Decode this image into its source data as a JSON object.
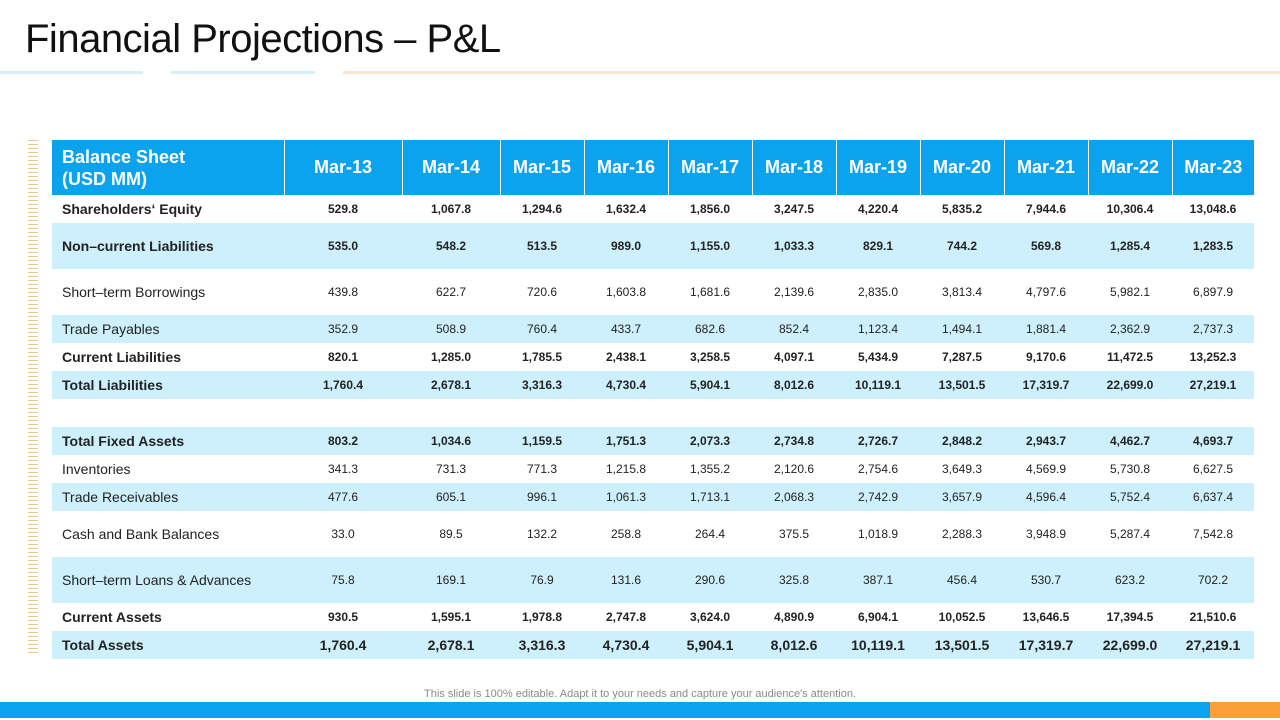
{
  "title": "Financial Projections – P&L",
  "colors": {
    "header_blue": "#0ba2ee",
    "row_shade": "#cdf0fc",
    "accent_orange": "#f8a039"
  },
  "table": {
    "header_label_line1": "Balance Sheet",
    "header_label_line2": "(USD MM)",
    "columns": [
      "Mar-13",
      "Mar-14",
      "Mar-15",
      "Mar-16",
      "Mar-17",
      "Mar-18",
      "Mar-19",
      "Mar-20",
      "Mar-21",
      "Mar-22",
      "Mar-23"
    ],
    "rows": [
      {
        "label": "Shareholders‘ Equity",
        "values": [
          "529.8",
          "1,067.8",
          "1,294.6",
          "1,632.4",
          "1,856.0",
          "3,247.5",
          "4,220.4",
          "5,835.2",
          "7,944.6",
          "10,306.4",
          "13,048.6"
        ]
      },
      {
        "label": "Non–current Liabilities",
        "values": [
          "535.0",
          "548.2",
          "513.5",
          "989.0",
          "1,155.0",
          "1,033.3",
          "829.1",
          "744.2",
          "569.8",
          "1,285.4",
          "1,283.5"
        ]
      },
      {
        "label": "Short–term Borrowings",
        "values": [
          "439.8",
          "622.7",
          "720.6",
          "1,603.8",
          "1,681.6",
          "2,139.6",
          "2,835.0",
          "3,813.4",
          "4,797.6",
          "5,982.1",
          "6,897.9"
        ]
      },
      {
        "label": "Trade Payables",
        "values": [
          "352.9",
          "508.9",
          "760.4",
          "433.7",
          "682.6",
          "852.4",
          "1,123.4",
          "1,494.1",
          "1,881.4",
          "2,362.9",
          "2,737.3"
        ]
      },
      {
        "label": "Current Liabilities",
        "values": [
          "820.1",
          "1,285.0",
          "1,785.5",
          "2,438.1",
          "3,258.5",
          "4,097.1",
          "5,434.9",
          "7,287.5",
          "9,170.6",
          "11,472.5",
          "13,252.3"
        ]
      },
      {
        "label": "Total Liabilities",
        "values": [
          "1,760.4",
          "2,678.1",
          "3,316.3",
          "4,730.4",
          "5,904.1",
          "8,012.6",
          "10,119.1",
          "13,501.5",
          "17,319.7",
          "22,699.0",
          "27,219.1"
        ]
      },
      {
        "label": "",
        "values": [
          "",
          "",
          "",
          "",
          "",
          "",
          "",
          "",
          "",
          "",
          ""
        ]
      },
      {
        "label": "Total Fixed Assets",
        "values": [
          "803.2",
          "1,034.6",
          "1,159.5",
          "1,751.3",
          "2,073.3",
          "2,734.8",
          "2,726.7",
          "2,848.2",
          "2,943.7",
          "4,462.7",
          "4,693.7"
        ]
      },
      {
        "label": "Inventories",
        "values": [
          "341.3",
          "731.3",
          "771.3",
          "1,215.8",
          "1,355.2",
          "2,120.6",
          "2,754.6",
          "3,649.3",
          "4,569.9",
          "5,730.8",
          "6,627.5"
        ]
      },
      {
        "label": "Trade Receivables",
        "values": [
          "477.6",
          "605.1",
          "996.1",
          "1,061.3",
          "1,713.1",
          "2,068.3",
          "2,742.9",
          "3,657.9",
          "4,596.4",
          "5,752.4",
          "6,637.4"
        ]
      },
      {
        "label": "Cash and Bank Balances",
        "values": [
          "33.0",
          "89.5",
          "132.2",
          "258.8",
          "264.4",
          "375.5",
          "1,018.9",
          "2,288.3",
          "3,948.9",
          "5,287.4",
          "7,542.8"
        ]
      },
      {
        "label": "Short–term Loans & Advances",
        "values": [
          "75.8",
          "169.1",
          "76.9",
          "131.6",
          "290.6",
          "325.8",
          "387.1",
          "456.4",
          "530.7",
          "623.2",
          "702.2"
        ]
      },
      {
        "label": "Current Assets",
        "values": [
          "930.5",
          "1,595.1",
          "1,978.8",
          "2,747.8",
          "3,624.0",
          "4,890.9",
          "6,904.1",
          "10,052.5",
          "13,646.5",
          "17,394.5",
          "21,510.6"
        ]
      },
      {
        "label": "Total Assets",
        "values": [
          "1,760.4",
          "2,678.1",
          "3,316.3",
          "4,730.4",
          "5,904.1",
          "8,012.6",
          "10,119.1",
          "13,501.5",
          "17,319.7",
          "22,699.0",
          "27,219.1"
        ]
      }
    ]
  },
  "footnote": "This slide is 100% editable. Adapt it to your needs and capture your audience's attention."
}
